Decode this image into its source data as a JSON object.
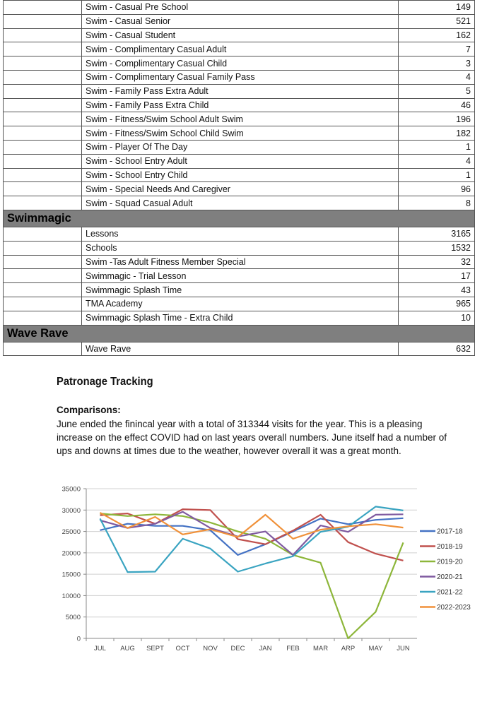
{
  "table": {
    "rows": [
      {
        "type": "item",
        "name": "Swim - Casual Pre School",
        "value": "149"
      },
      {
        "type": "item",
        "name": "Swim - Casual Senior",
        "value": "521"
      },
      {
        "type": "item",
        "name": "Swim - Casual Student",
        "value": "162"
      },
      {
        "type": "item",
        "name": "Swim - Complimentary Casual Adult",
        "value": "7"
      },
      {
        "type": "item",
        "name": "Swim - Complimentary Casual Child",
        "value": "3"
      },
      {
        "type": "item",
        "name": "Swim - Complimentary Casual Family Pass",
        "value": "4"
      },
      {
        "type": "item",
        "name": "Swim - Family Pass Extra Adult",
        "value": "5"
      },
      {
        "type": "item",
        "name": "Swim - Family Pass Extra Child",
        "value": "46"
      },
      {
        "type": "item",
        "name": "Swim - Fitness/Swim School Adult Swim",
        "value": "196"
      },
      {
        "type": "item",
        "name": "Swim - Fitness/Swim School Child Swim",
        "value": "182"
      },
      {
        "type": "item",
        "name": "Swim - Player Of The Day",
        "value": "1"
      },
      {
        "type": "item",
        "name": "Swim - School Entry Adult",
        "value": "4"
      },
      {
        "type": "item",
        "name": "Swim - School Entry Child",
        "value": "1"
      },
      {
        "type": "item",
        "name": "Swim - Special Needs And Caregiver",
        "value": "96"
      },
      {
        "type": "item",
        "name": "Swim - Squad Casual Adult",
        "value": "8"
      },
      {
        "type": "section",
        "name": "Swimmagic"
      },
      {
        "type": "item",
        "name": "Lessons",
        "value": "3165"
      },
      {
        "type": "item",
        "name": "Schools",
        "value": "1532"
      },
      {
        "type": "item",
        "name": "Swim -Tas Adult Fitness Member Special",
        "value": "32"
      },
      {
        "type": "item",
        "name": "Swimmagic - Trial Lesson",
        "value": "17"
      },
      {
        "type": "item",
        "name": "Swimmagic Splash Time",
        "value": "43"
      },
      {
        "type": "item",
        "name": "TMA Academy",
        "value": "965"
      },
      {
        "type": "item",
        "name": "Swimmagic Splash Time - Extra Child",
        "value": "10"
      },
      {
        "type": "section",
        "name": "Wave Rave"
      },
      {
        "type": "item",
        "name": "Wave Rave",
        "value": "632"
      }
    ]
  },
  "report": {
    "heading": "Patronage Tracking",
    "comparisons_label": "Comparisons:",
    "comparisons_text": "June ended the finincal year with a total of 313344 visits for the year. This is a pleasing increase on the effect  COVID had on last years overall numbers. June itself had a number of ups and downs at times due to the weather, however overall it was a great month."
  },
  "chart_data": {
    "type": "line",
    "categories": [
      "JUL",
      "AUG",
      "SEPT",
      "OCT",
      "NOV",
      "DEC",
      "JAN",
      "FEB",
      "MAR",
      "ARP",
      "MAY",
      "JUN"
    ],
    "ylim": [
      0,
      35000
    ],
    "yticks": [
      "0",
      "5000",
      "10000",
      "15000",
      "20000",
      "25000",
      "30000",
      "35000"
    ],
    "grid": true,
    "legend": "right",
    "series": [
      {
        "name": "2017-18",
        "color": "#4472c4",
        "values": [
          25300,
          26800,
          26300,
          26300,
          25300,
          19500,
          22000,
          25000,
          28000,
          26700,
          27700,
          28100
        ]
      },
      {
        "name": "2018-19",
        "color": "#c0504d",
        "values": [
          28800,
          29200,
          26800,
          30200,
          30000,
          23200,
          22000,
          25200,
          28900,
          22500,
          19800,
          18200
        ]
      },
      {
        "name": "2019-20",
        "color": "#8db63a",
        "values": [
          29200,
          28600,
          29000,
          28600,
          27100,
          25000,
          23300,
          19500,
          17700,
          0,
          6200,
          22400
        ]
      },
      {
        "name": "2020-21",
        "color": "#7f5aa0",
        "values": [
          27600,
          25800,
          26800,
          29600,
          25800,
          23800,
          25000,
          19500,
          26400,
          24900,
          28900,
          29000
        ]
      },
      {
        "name": "2021-22",
        "color": "#3aa4c1",
        "values": [
          28000,
          15500,
          15600,
          23300,
          21000,
          15600,
          17500,
          19200,
          24900,
          26100,
          30800,
          29900
        ]
      },
      {
        "name": "2022-2023",
        "color": "#f0913a",
        "values": [
          29400,
          25800,
          28400,
          24300,
          25500,
          23700,
          28900,
          23300,
          25400,
          26200,
          26700,
          25900
        ]
      }
    ]
  }
}
